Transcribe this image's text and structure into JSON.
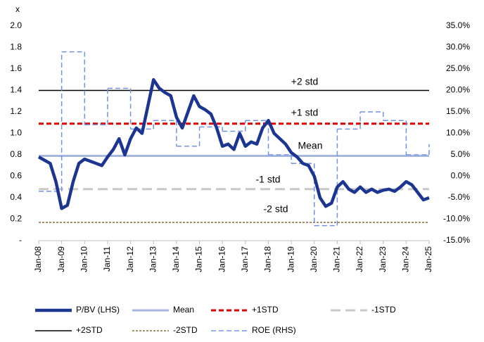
{
  "chart_data": {
    "type": "line",
    "y_label": "x",
    "xlim": [
      2008,
      2025
    ],
    "xticks": [
      {
        "value": 2008,
        "label": "Jan-08"
      },
      {
        "value": 2009,
        "label": "Jan-09"
      },
      {
        "value": 2010,
        "label": "Jan-10"
      },
      {
        "value": 2011,
        "label": "Jan-11"
      },
      {
        "value": 2012,
        "label": "Jan-12"
      },
      {
        "value": 2013,
        "label": "Jan-13"
      },
      {
        "value": 2014,
        "label": "Jan-14"
      },
      {
        "value": 2015,
        "label": "Jan-15"
      },
      {
        "value": 2016,
        "label": "Jan-16"
      },
      {
        "value": 2017,
        "label": "Jan-17"
      },
      {
        "value": 2018,
        "label": "Jan-18"
      },
      {
        "value": 2019,
        "label": "Jan-19"
      },
      {
        "value": 2020,
        "label": "Jan-20"
      },
      {
        "value": 2021,
        "label": "Jan-21"
      },
      {
        "value": 2022,
        "label": "Jan-22"
      },
      {
        "value": 2023,
        "label": "Jan-23"
      },
      {
        "value": 2024,
        "label": "Jan-24"
      },
      {
        "value": 2025,
        "label": "Jan-25"
      }
    ],
    "ylim": [
      0,
      2
    ],
    "yticks": [
      {
        "value": 0,
        "label": "-"
      },
      0.2,
      0.4,
      0.6,
      0.8,
      {
        "value": 1,
        "label": "1.0"
      },
      1.2,
      1.4,
      1.6,
      1.8,
      {
        "value": 2,
        "label": "2.0"
      }
    ],
    "y2lim": [
      -15,
      35
    ],
    "y2ticks": [
      {
        "value": -15,
        "label": "-15.0%"
      },
      {
        "value": -10,
        "label": "-10.0%"
      },
      {
        "value": -5,
        "label": "-5.0%"
      },
      {
        "value": 0,
        "label": "0.0%"
      },
      {
        "value": 5,
        "label": "5.0%"
      },
      {
        "value": 10,
        "label": "10.0%"
      },
      {
        "value": 15,
        "label": "15.0%"
      },
      {
        "value": 20,
        "label": "20.0%"
      },
      {
        "value": 25,
        "label": "25.0%"
      },
      {
        "value": 30,
        "label": "30.0%"
      },
      {
        "value": 35,
        "label": "35.0%"
      }
    ],
    "series": [
      {
        "name": "P/BV (LHS)",
        "color": "#1b3591",
        "width": 4.5,
        "dash": "solid",
        "x": [
          2008,
          2008.25,
          2008.5,
          2008.75,
          2009,
          2009.25,
          2009.5,
          2009.75,
          2010,
          2010.25,
          2010.5,
          2010.75,
          2011,
          2011.25,
          2011.5,
          2011.75,
          2012,
          2012.25,
          2012.5,
          2012.75,
          2013,
          2013.25,
          2013.5,
          2013.75,
          2014,
          2014.25,
          2014.5,
          2014.75,
          2015,
          2015.25,
          2015.5,
          2015.75,
          2016,
          2016.25,
          2016.5,
          2016.75,
          2017,
          2017.25,
          2017.5,
          2017.75,
          2018,
          2018.25,
          2018.5,
          2018.75,
          2019,
          2019.25,
          2019.5,
          2019.75,
          2020,
          2020.25,
          2020.5,
          2020.75,
          2021,
          2021.25,
          2021.5,
          2021.75,
          2022,
          2022.25,
          2022.5,
          2022.75,
          2023,
          2023.25,
          2023.5,
          2023.75,
          2024,
          2024.25,
          2024.5,
          2024.75,
          2025
        ],
        "values": [
          0.78,
          0.75,
          0.72,
          0.55,
          0.3,
          0.33,
          0.55,
          0.72,
          0.76,
          0.74,
          0.72,
          0.7,
          0.78,
          0.85,
          0.95,
          0.8,
          0.95,
          1.05,
          1.0,
          1.25,
          1.5,
          1.42,
          1.38,
          1.35,
          1.15,
          1.05,
          1.2,
          1.35,
          1.25,
          1.22,
          1.18,
          1.05,
          0.88,
          0.9,
          0.85,
          1.0,
          0.88,
          0.92,
          0.9,
          1.05,
          1.12,
          1.0,
          0.95,
          0.9,
          0.82,
          0.78,
          0.72,
          0.7,
          0.6,
          0.4,
          0.32,
          0.35,
          0.5,
          0.55,
          0.48,
          0.45,
          0.5,
          0.45,
          0.48,
          0.45,
          0.47,
          0.48,
          0.46,
          0.5,
          0.55,
          0.52,
          0.45,
          0.38,
          0.4
        ]
      },
      {
        "name": "Mean",
        "color": "#a7b6de",
        "width": 3,
        "dash": "solid",
        "x": [
          2008,
          2025
        ],
        "values": [
          0.79,
          0.79
        ]
      },
      {
        "name": "+1STD",
        "color": "#e00000",
        "width": 3,
        "dash": "dashed",
        "x": [
          2008,
          2025
        ],
        "values": [
          1.09,
          1.09
        ]
      },
      {
        "name": "-1STD",
        "color": "#c8c8c8",
        "width": 3,
        "dash": "longdash",
        "x": [
          2008,
          2025
        ],
        "values": [
          0.48,
          0.48
        ]
      },
      {
        "name": "+2STD",
        "color": "#000000",
        "width": 1.5,
        "dash": "solid",
        "x": [
          2008,
          2025
        ],
        "values": [
          1.4,
          1.4
        ]
      },
      {
        "name": "-2STD",
        "color": "#8b6a3e",
        "width": 1.5,
        "dash": "dotted",
        "x": [
          2008,
          2025
        ],
        "values": [
          0.17,
          0.17
        ]
      },
      {
        "name": "ROE (RHS)",
        "color": "#7393e0",
        "width": 1.5,
        "dash": "dashed",
        "axis": "y2",
        "step": "post",
        "x": [
          2008,
          2009,
          2010,
          2011,
          2012,
          2013,
          2014,
          2015,
          2016,
          2017,
          2018,
          2019,
          2020,
          2021,
          2022,
          2023,
          2024,
          2025
        ],
        "values": [
          -3.5,
          29,
          12,
          20.5,
          11,
          13,
          7,
          11.5,
          10.5,
          13,
          5,
          3,
          -11.5,
          11,
          15,
          13,
          5,
          7.5
        ]
      }
    ],
    "annotations": [
      "+2 std",
      "+1 std",
      "Mean",
      "-1 std",
      "-2 std"
    ]
  }
}
